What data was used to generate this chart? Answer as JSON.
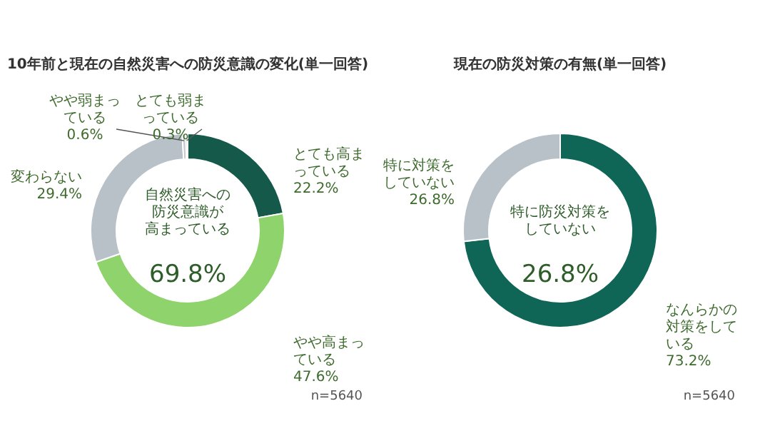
{
  "chart_data": [
    {
      "type": "donut",
      "title": "10年前と現在の自然災害への防災意識の変化(単一回答)",
      "categories": [
        "とても高まっている",
        "やや高まっている",
        "変わらない",
        "やや弱まっている",
        "とても弱まっている"
      ],
      "values": [
        22.2,
        47.6,
        29.4,
        0.6,
        0.3
      ],
      "value_labels": [
        "22.2%",
        "47.6%",
        "29.4%",
        "0.6%",
        "0.3%"
      ],
      "colors": [
        "#14594a",
        "#8ed36b",
        "#b8c0c8",
        "#c4cad0",
        "#c4cad0"
      ],
      "legend": false,
      "annotations": [
        "自然災害への",
        "防災意識が",
        "高まっている",
        "69.8%",
        "n=5640"
      ]
    },
    {
      "type": "donut",
      "title": "現在の防災対策の有無(単一回答)",
      "categories": [
        "なんらかの対策をしている",
        "特に対策をしていない"
      ],
      "values": [
        73.2,
        26.8
      ],
      "value_labels": [
        "73.2%",
        "26.8%"
      ],
      "colors": [
        "#0f6656",
        "#b8c0c8"
      ],
      "legend": false,
      "annotations": [
        "特に防災対策を",
        "していない",
        "26.8%",
        "n=5640"
      ]
    }
  ]
}
